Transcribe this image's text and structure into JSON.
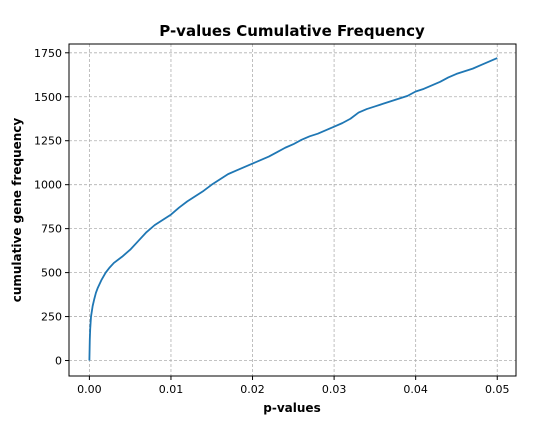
{
  "chart_data": {
    "type": "line",
    "title": "P-values Cumulative Frequency",
    "xlabel": "p-values",
    "ylabel": "cumulative gene frequency",
    "xlim": [
      -0.0025,
      0.0523
    ],
    "ylim": [
      -88,
      1800
    ],
    "xticks": [
      0.0,
      0.01,
      0.02,
      0.03,
      0.04,
      0.05
    ],
    "xtick_labels": [
      "0.00",
      "0.01",
      "0.02",
      "0.03",
      "0.04",
      "0.05"
    ],
    "yticks": [
      0,
      250,
      500,
      750,
      1000,
      1250,
      1500,
      1750
    ],
    "ytick_labels": [
      "0",
      "250",
      "500",
      "750",
      "1000",
      "1250",
      "1500",
      "1750"
    ],
    "grid": true,
    "series": [
      {
        "color": "#1f77b4",
        "x": [
          0.0,
          5e-05,
          0.0001,
          0.0002,
          0.0004,
          0.0006,
          0.0008,
          0.001,
          0.0015,
          0.002,
          0.0025,
          0.003,
          0.004,
          0.005,
          0.006,
          0.007,
          0.008,
          0.009,
          0.01,
          0.011,
          0.012,
          0.013,
          0.014,
          0.015,
          0.016,
          0.017,
          0.018,
          0.019,
          0.02,
          0.021,
          0.022,
          0.023,
          0.024,
          0.025,
          0.026,
          0.027,
          0.028,
          0.029,
          0.03,
          0.031,
          0.032,
          0.033,
          0.034,
          0.035,
          0.036,
          0.037,
          0.038,
          0.039,
          0.04,
          0.041,
          0.042,
          0.043,
          0.044,
          0.045,
          0.046,
          0.047,
          0.048,
          0.049,
          0.05
        ],
        "y": [
          0,
          120,
          180,
          250,
          310,
          350,
          385,
          410,
          460,
          500,
          530,
          555,
          590,
          630,
          680,
          730,
          770,
          800,
          830,
          870,
          905,
          935,
          965,
          1000,
          1030,
          1060,
          1080,
          1100,
          1120,
          1140,
          1160,
          1185,
          1210,
          1230,
          1255,
          1275,
          1290,
          1310,
          1330,
          1350,
          1375,
          1410,
          1430,
          1445,
          1460,
          1475,
          1490,
          1505,
          1530,
          1545,
          1565,
          1585,
          1610,
          1630,
          1645,
          1660,
          1680,
          1700,
          1720
        ]
      }
    ]
  }
}
